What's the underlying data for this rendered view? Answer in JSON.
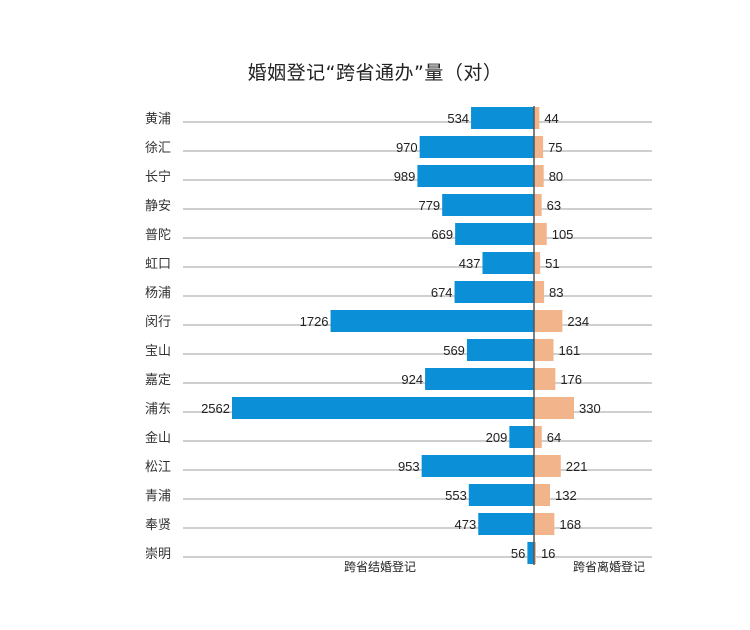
{
  "page": {
    "title": "婚姻登记“跨省通办”量（对）"
  },
  "chart_data": {
    "type": "bar",
    "title": "婚姻登记“跨省通办”量（对）",
    "categories": [
      "黄浦",
      "徐汇",
      "长宁",
      "静安",
      "普陀",
      "虹口",
      "杨浦",
      "闵行",
      "宝山",
      "嘉定",
      "浦东",
      "金山",
      "松江",
      "青浦",
      "奉贤",
      "崇明"
    ],
    "series": [
      {
        "name": "跨省结婚登记",
        "color": "#0b8fd6",
        "direction": "left",
        "values": [
          534,
          970,
          989,
          779,
          669,
          437,
          674,
          1726,
          569,
          924,
          2562,
          209,
          953,
          553,
          473,
          56
        ]
      },
      {
        "name": "跨省离婚登记",
        "color": "#f2b48b",
        "direction": "right",
        "values": [
          44,
          75,
          80,
          63,
          105,
          51,
          83,
          234,
          161,
          176,
          330,
          64,
          221,
          132,
          168,
          16
        ]
      }
    ],
    "grid": true,
    "legend": "bottom"
  }
}
